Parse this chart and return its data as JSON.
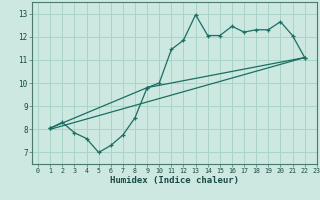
{
  "title": "",
  "xlabel": "Humidex (Indice chaleur)",
  "xlim": [
    -0.5,
    23
  ],
  "ylim": [
    6.5,
    13.5
  ],
  "xticks": [
    0,
    1,
    2,
    3,
    4,
    5,
    6,
    7,
    8,
    9,
    10,
    11,
    12,
    13,
    14,
    15,
    16,
    17,
    18,
    19,
    20,
    21,
    22,
    23
  ],
  "yticks": [
    7,
    8,
    9,
    10,
    11,
    12,
    13
  ],
  "bg_color": "#cce8e0",
  "grid_color": "#aad4c8",
  "line_color": "#1a6e62",
  "line1_x": [
    1,
    2,
    3,
    4,
    5,
    6,
    7,
    8,
    9,
    10,
    11,
    12,
    13,
    14,
    15,
    16,
    17,
    18,
    19,
    20,
    21,
    22
  ],
  "line1_y": [
    8.05,
    8.3,
    7.85,
    7.6,
    7.0,
    7.3,
    7.75,
    8.5,
    9.8,
    10.0,
    11.45,
    11.85,
    12.95,
    12.05,
    12.05,
    12.45,
    12.2,
    12.3,
    12.3,
    12.65,
    12.05,
    11.1
  ],
  "line2_x": [
    1,
    9,
    22
  ],
  "line2_y": [
    8.05,
    9.8,
    11.1
  ],
  "line3_x": [
    1,
    22
  ],
  "line3_y": [
    8.0,
    11.1
  ]
}
